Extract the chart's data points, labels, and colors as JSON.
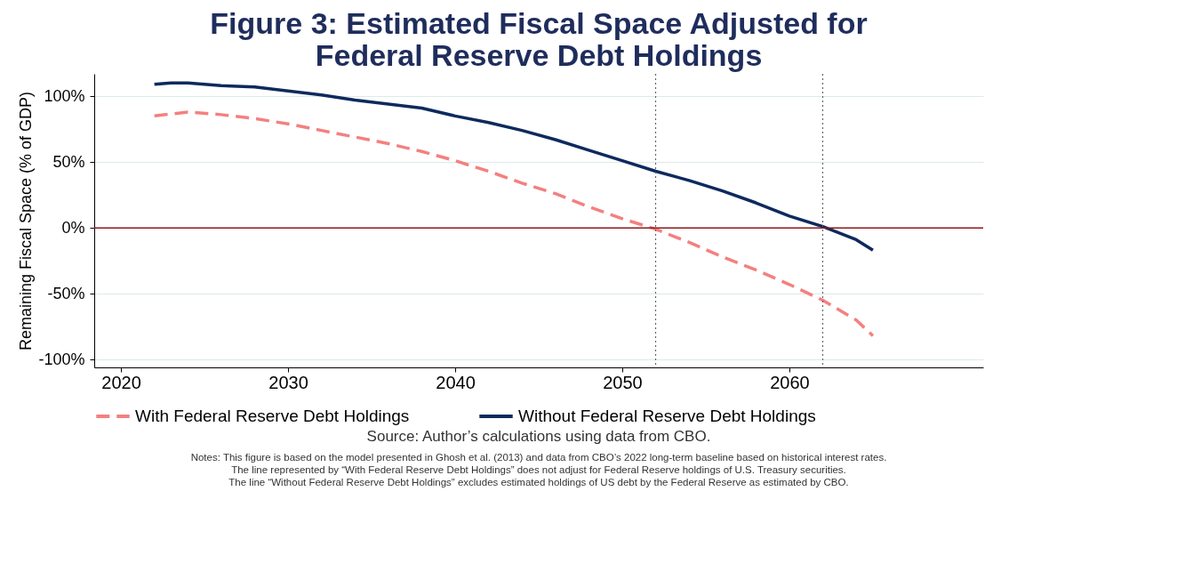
{
  "chart_data": {
    "type": "line",
    "title": "Figure 3: Estimated Fiscal Space Adjusted for Federal Reserve Debt Holdings",
    "ylabel": "Remaining Fiscal Space (% of GDP)",
    "xlim": [
      2018.4,
      2071.6
    ],
    "xticks": [
      2020,
      2030,
      2040,
      2050,
      2060
    ],
    "ylim": [
      -106,
      117
    ],
    "yticks": [
      {
        "value": -100,
        "label": "-100%"
      },
      {
        "value": -50,
        "label": "-50%"
      },
      {
        "value": 0,
        "label": "0%"
      },
      {
        "value": 50,
        "label": "50%"
      },
      {
        "value": 100,
        "label": "100%"
      }
    ],
    "grid": "y",
    "legend": "bottom",
    "series": [
      {
        "name": "With Federal Reserve Debt Holdings",
        "color": "#f48080",
        "line_style": "dashed",
        "x": [
          2022,
          2024,
          2026,
          2028,
          2030,
          2032,
          2034,
          2036,
          2038,
          2040,
          2042,
          2044,
          2046,
          2048,
          2050,
          2052,
          2054,
          2056,
          2058,
          2060,
          2062,
          2064,
          2065
        ],
        "values": [
          85,
          88,
          86,
          83,
          79,
          74,
          69,
          64,
          58,
          51,
          43,
          34,
          26,
          16,
          7,
          -1,
          -11,
          -22,
          -32,
          -43,
          -55,
          -70,
          -82
        ]
      },
      {
        "name": "Without Federal Reserve Debt Holdings",
        "color": "#0d2a5e",
        "line_style": "solid",
        "x": [
          2022,
          2023,
          2024,
          2026,
          2028,
          2030,
          2032,
          2034,
          2036,
          2038,
          2040,
          2042,
          2044,
          2046,
          2048,
          2050,
          2052,
          2054,
          2056,
          2058,
          2060,
          2062,
          2064,
          2065
        ],
        "values": [
          109,
          110,
          110,
          108,
          107,
          104,
          101,
          97,
          94,
          91,
          85,
          80,
          74,
          67,
          59,
          51,
          43,
          36,
          28,
          19,
          9,
          1,
          -9,
          -17
        ]
      }
    ],
    "ref_lines": [
      {
        "axis": "y",
        "value": 0,
        "color": "#8b1a1a",
        "line_style": "solid"
      },
      {
        "axis": "x",
        "value": 2052,
        "color": "#555555",
        "line_style": "dotted"
      },
      {
        "axis": "x",
        "value": 2062,
        "color": "#555555",
        "line_style": "dotted"
      }
    ],
    "annotations": [
      "Source: Author’s calculations using data from CBO.",
      "Notes: This figure is based on the model presented in Ghosh et al. (2013) and data from CBO’s 2022 long-term baseline based on historical interest rates.",
      "The line represented by “With Federal Reserve Debt Holdings” does not adjust for Federal Reserve holdings of U.S. Treasury securities.",
      "The line “Without Federal Reserve Debt Holdings” excludes estimated holdings of US debt by the Federal Reserve as estimated by CBO."
    ]
  }
}
